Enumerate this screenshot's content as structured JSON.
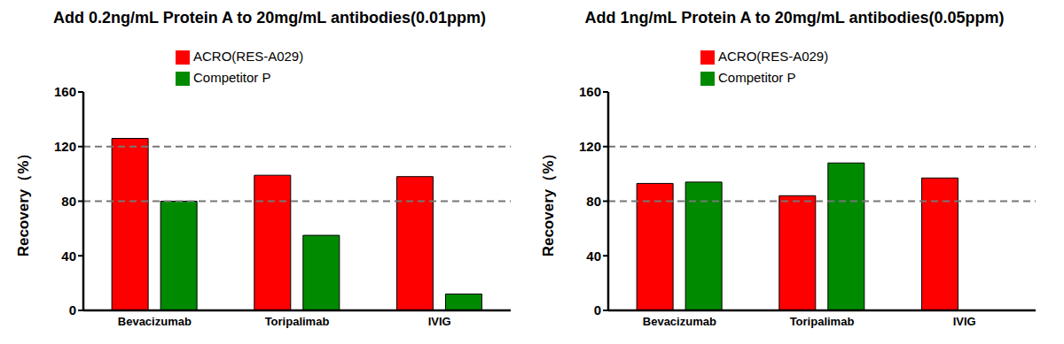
{
  "chart_data": [
    {
      "type": "bar",
      "title": "Add 0.2ng/mL Protein A to 20mg/mL antibodies(0.01ppm)",
      "y_label": "Recovery（%）",
      "categories": [
        "Bevacizumab",
        "Toripalimab",
        "IVIG"
      ],
      "series": [
        {
          "name": "ACRO(RES-A029)",
          "color": "#ff0000",
          "values": [
            126,
            99,
            98
          ]
        },
        {
          "name": "Competitor P",
          "color": "#008a00",
          "values": [
            80,
            55,
            12
          ]
        }
      ],
      "ylim": [
        0,
        160
      ],
      "yticks": [
        0,
        40,
        80,
        120,
        160
      ],
      "grid": false,
      "reference_lines": [
        80,
        120
      ],
      "legend": "top"
    },
    {
      "type": "bar",
      "title": "Add 1ng/mL Protein A to 20mg/mL antibodies(0.05ppm)",
      "y_label": "Recovery（%）",
      "categories": [
        "Bevacizumab",
        "Toripalimab",
        "IVIG"
      ],
      "series": [
        {
          "name": "ACRO(RES-A029)",
          "color": "#ff0000",
          "values": [
            93,
            84,
            97
          ]
        },
        {
          "name": "Competitor P",
          "color": "#008a00",
          "values": [
            94,
            108,
            null
          ]
        }
      ],
      "ylim": [
        0,
        160
      ],
      "yticks": [
        0,
        40,
        80,
        120,
        160
      ],
      "grid": false,
      "reference_lines": [
        80,
        120
      ],
      "legend": "top"
    }
  ]
}
